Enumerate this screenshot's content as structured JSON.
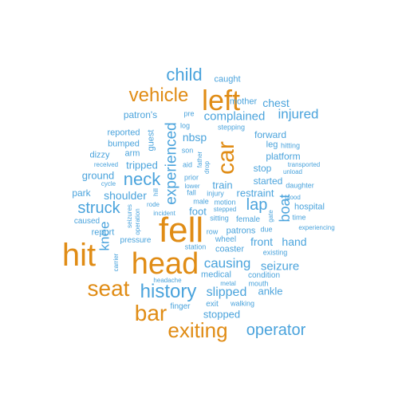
{
  "colors": {
    "orange": "#e08c15",
    "blue": "#4aa3dc",
    "background": "#ffffff"
  },
  "words": [
    {
      "text": "fell",
      "color": "orange"
    },
    {
      "text": "head",
      "color": "orange"
    },
    {
      "text": "hit",
      "color": "orange"
    },
    {
      "text": "left",
      "color": "orange"
    },
    {
      "text": "car",
      "color": "orange"
    },
    {
      "text": "exiting",
      "color": "orange"
    },
    {
      "text": "seat",
      "color": "orange"
    },
    {
      "text": "bar",
      "color": "orange"
    },
    {
      "text": "vehicle",
      "color": "orange"
    },
    {
      "text": "history",
      "color": "blue"
    },
    {
      "text": "operator",
      "color": "blue"
    },
    {
      "text": "child",
      "color": "blue"
    },
    {
      "text": "neck",
      "color": "blue"
    },
    {
      "text": "struck",
      "color": "blue"
    },
    {
      "text": "experienced",
      "color": "blue"
    },
    {
      "text": "boat",
      "color": "blue"
    },
    {
      "text": "lap",
      "color": "blue"
    },
    {
      "text": "knee",
      "color": "blue"
    },
    {
      "text": "causing",
      "color": "blue"
    },
    {
      "text": "injured",
      "color": "blue"
    },
    {
      "text": "slipped",
      "color": "blue"
    },
    {
      "text": "complained",
      "color": "blue"
    },
    {
      "text": "seizure",
      "color": "blue"
    },
    {
      "text": "chest",
      "color": "blue"
    },
    {
      "text": "shoulder",
      "color": "blue"
    },
    {
      "text": "front",
      "color": "blue"
    },
    {
      "text": "hand",
      "color": "blue"
    },
    {
      "text": "nbsp",
      "color": "blue"
    },
    {
      "text": "stopped",
      "color": "blue"
    },
    {
      "text": "restraint",
      "color": "blue"
    },
    {
      "text": "ankle",
      "color": "blue"
    },
    {
      "text": "foot",
      "color": "blue"
    },
    {
      "text": "train",
      "color": "blue"
    },
    {
      "text": "tripped",
      "color": "blue"
    },
    {
      "text": "ground",
      "color": "blue"
    },
    {
      "text": "patron's",
      "color": "blue"
    },
    {
      "text": "forward",
      "color": "blue"
    },
    {
      "text": "started",
      "color": "blue"
    },
    {
      "text": "stop",
      "color": "blue"
    },
    {
      "text": "platform",
      "color": "blue"
    },
    {
      "text": "park",
      "color": "blue"
    },
    {
      "text": "medical",
      "color": "blue"
    },
    {
      "text": "report",
      "color": "blue"
    },
    {
      "text": "coaster",
      "color": "blue"
    },
    {
      "text": "patrons",
      "color": "blue"
    },
    {
      "text": "mother",
      "color": "blue"
    },
    {
      "text": "caught",
      "color": "blue"
    },
    {
      "text": "reported",
      "color": "blue"
    },
    {
      "text": "bumped",
      "color": "blue"
    },
    {
      "text": "dizzy",
      "color": "blue"
    },
    {
      "text": "arm",
      "color": "blue"
    },
    {
      "text": "guest",
      "color": "blue"
    },
    {
      "text": "leg",
      "color": "blue"
    },
    {
      "text": "hospital",
      "color": "blue"
    },
    {
      "text": "wheel",
      "color": "blue"
    },
    {
      "text": "female",
      "color": "blue"
    },
    {
      "text": "exit",
      "color": "blue"
    },
    {
      "text": "condition",
      "color": "blue"
    },
    {
      "text": "caused",
      "color": "blue"
    },
    {
      "text": "pressure",
      "color": "blue"
    },
    {
      "text": "finger",
      "color": "blue"
    },
    {
      "text": "station",
      "color": "blue"
    },
    {
      "text": "mouth",
      "color": "blue"
    },
    {
      "text": "walking",
      "color": "blue"
    },
    {
      "text": "existing",
      "color": "blue"
    },
    {
      "text": "due",
      "color": "blue"
    },
    {
      "text": "injury",
      "color": "blue"
    },
    {
      "text": "motion",
      "color": "blue"
    },
    {
      "text": "stepping",
      "color": "blue"
    },
    {
      "text": "hitting",
      "color": "blue"
    },
    {
      "text": "daughter",
      "color": "blue"
    },
    {
      "text": "time",
      "color": "blue"
    },
    {
      "text": "sitting",
      "color": "blue"
    },
    {
      "text": "male",
      "color": "blue"
    },
    {
      "text": "row",
      "color": "blue"
    },
    {
      "text": "fall",
      "color": "blue"
    },
    {
      "text": "prior",
      "color": "blue"
    },
    {
      "text": "son",
      "color": "blue"
    },
    {
      "text": "aid",
      "color": "blue"
    },
    {
      "text": "log",
      "color": "blue"
    },
    {
      "text": "pre",
      "color": "blue"
    },
    {
      "text": "received",
      "color": "blue"
    },
    {
      "text": "cycle",
      "color": "blue"
    },
    {
      "text": "rode",
      "color": "blue"
    },
    {
      "text": "incident",
      "color": "blue"
    },
    {
      "text": "headache",
      "color": "blue"
    },
    {
      "text": "metal",
      "color": "blue"
    },
    {
      "text": "stepped",
      "color": "blue"
    },
    {
      "text": "transported",
      "color": "blue"
    },
    {
      "text": "unload",
      "color": "blue"
    },
    {
      "text": "blood",
      "color": "blue"
    },
    {
      "text": "experiencing",
      "color": "blue"
    },
    {
      "text": "lower",
      "color": "blue"
    },
    {
      "text": "seizures",
      "color": "blue"
    },
    {
      "text": "operation",
      "color": "blue"
    },
    {
      "text": "carrier",
      "color": "blue"
    },
    {
      "text": "hill",
      "color": "blue"
    },
    {
      "text": "father",
      "color": "blue"
    },
    {
      "text": "drop",
      "color": "blue"
    },
    {
      "text": "gate",
      "color": "blue"
    }
  ]
}
